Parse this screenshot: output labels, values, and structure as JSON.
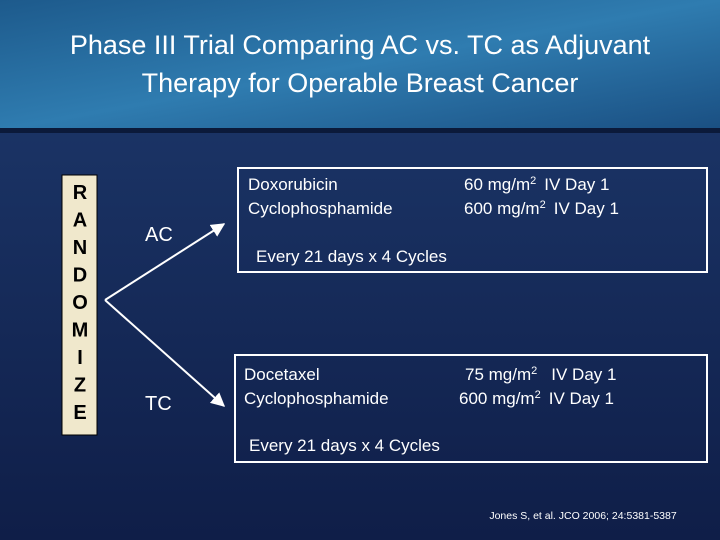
{
  "header": {
    "title_lines": [
      "Phase III Trial Comparing AC vs. TC as Adjuvant",
      "Therapy for Operable Breast Cancer"
    ]
  },
  "randomize": {
    "letters": [
      "R",
      "A",
      "N",
      "D",
      "O",
      "M",
      "I",
      "Z",
      "E"
    ]
  },
  "arms": [
    {
      "label": "AC",
      "drugs": [
        {
          "drug": "Doxorubicin",
          "dose": "60 mg/m",
          "exponent": "2",
          "route": "IV Day 1"
        },
        {
          "drug": "Cyclophosphamide",
          "dose": "600 mg/m",
          "exponent": "2",
          "route": "IV Day 1"
        }
      ],
      "schedule": "Every 21 days x 4 Cycles"
    },
    {
      "label": "TC",
      "drugs": [
        {
          "drug": "Docetaxel",
          "dose": "75 mg/m",
          "exponent": "2",
          "route": "IV Day 1"
        },
        {
          "drug": "Cyclophosphamide",
          "dose": "600 mg/m",
          "exponent": "2",
          "route": "IV Day 1"
        }
      ],
      "schedule": "Every 21 days x 4 Cycles"
    }
  ],
  "citation": "Jones S, et al. JCO 2006; 24:5381-5387"
}
